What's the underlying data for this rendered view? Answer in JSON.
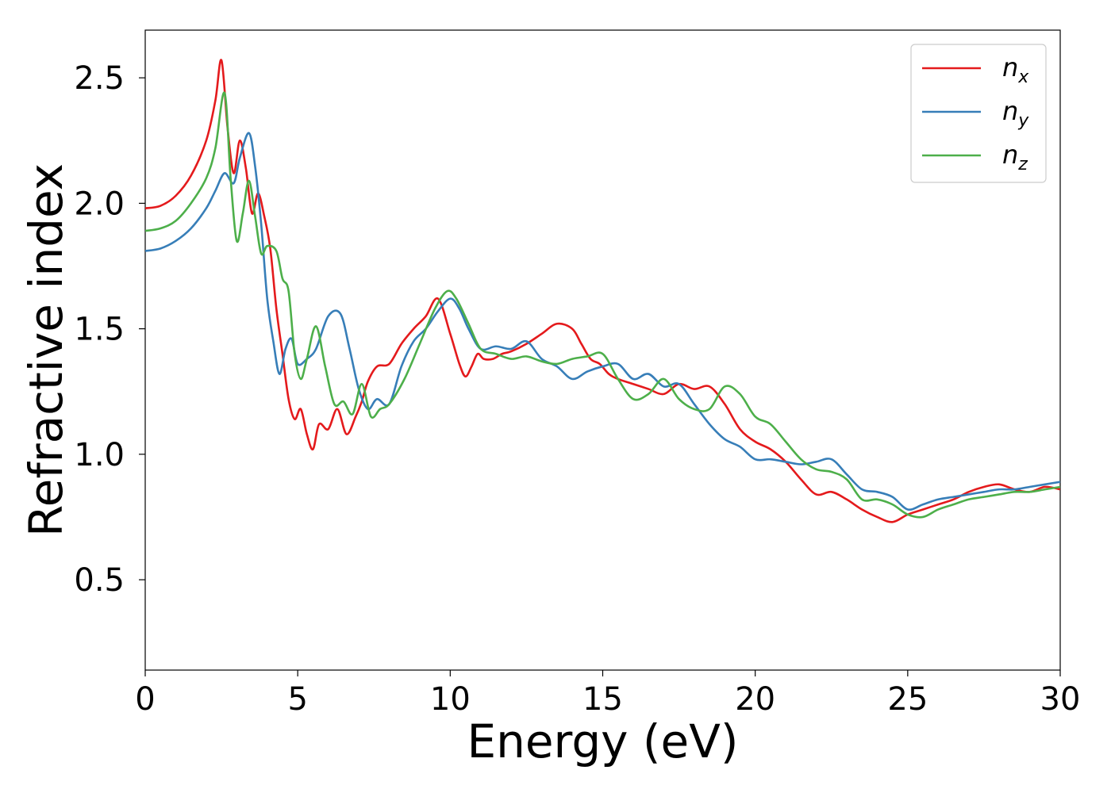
{
  "chart_data": {
    "type": "line",
    "title": "",
    "xlabel": "Energy (eV)",
    "ylabel": "Refractive index",
    "xlim": [
      0,
      30
    ],
    "ylim": [
      0.14,
      2.69
    ],
    "xticks": [
      0,
      5,
      10,
      15,
      20,
      25,
      30
    ],
    "xtick_labels": [
      "0",
      "5",
      "10",
      "15",
      "20",
      "25",
      "30"
    ],
    "yticks": [
      0.5,
      1.0,
      1.5,
      2.0,
      2.5
    ],
    "ytick_labels": [
      "0.5",
      "1.0",
      "1.5",
      "2.0",
      "2.5"
    ],
    "grid": false,
    "legend_position": "top-right",
    "series": [
      {
        "name": "n",
        "subscript": "x",
        "color": "#e41a1c",
        "x": [
          0,
          0.5,
          1.0,
          1.5,
          2.0,
          2.3,
          2.5,
          2.7,
          2.9,
          3.1,
          3.3,
          3.5,
          3.7,
          3.9,
          4.1,
          4.3,
          4.5,
          4.7,
          4.9,
          5.1,
          5.3,
          5.5,
          5.7,
          6.0,
          6.3,
          6.6,
          6.9,
          7.1,
          7.3,
          7.6,
          8.0,
          8.4,
          8.8,
          9.2,
          9.6,
          10.0,
          10.3,
          10.5,
          10.7,
          10.9,
          11.1,
          11.4,
          11.7,
          12.0,
          12.5,
          13.0,
          13.5,
          14.0,
          14.3,
          14.6,
          14.9,
          15.2,
          15.5,
          16.0,
          16.5,
          17.0,
          17.5,
          18.0,
          18.5,
          19.0,
          19.5,
          20.0,
          20.5,
          21.0,
          21.5,
          22.0,
          22.5,
          23.0,
          23.5,
          24.0,
          24.5,
          25.0,
          25.5,
          26.0,
          26.5,
          27.0,
          27.5,
          28.0,
          28.5,
          29.0,
          29.5,
          30.0
        ],
        "values": [
          1.98,
          1.99,
          2.03,
          2.11,
          2.25,
          2.41,
          2.57,
          2.3,
          2.12,
          2.25,
          2.14,
          1.96,
          2.04,
          1.95,
          1.82,
          1.58,
          1.4,
          1.22,
          1.14,
          1.18,
          1.08,
          1.02,
          1.12,
          1.1,
          1.18,
          1.08,
          1.15,
          1.21,
          1.29,
          1.35,
          1.36,
          1.44,
          1.5,
          1.55,
          1.62,
          1.48,
          1.36,
          1.31,
          1.35,
          1.4,
          1.38,
          1.38,
          1.4,
          1.41,
          1.44,
          1.48,
          1.52,
          1.5,
          1.44,
          1.38,
          1.36,
          1.32,
          1.3,
          1.28,
          1.26,
          1.24,
          1.28,
          1.26,
          1.27,
          1.2,
          1.1,
          1.05,
          1.02,
          0.97,
          0.9,
          0.84,
          0.85,
          0.82,
          0.78,
          0.75,
          0.73,
          0.76,
          0.78,
          0.8,
          0.82,
          0.85,
          0.87,
          0.88,
          0.86,
          0.85,
          0.87,
          0.86
        ]
      },
      {
        "name": "n",
        "subscript": "y",
        "color": "#377eb8",
        "x": [
          0,
          0.5,
          1.0,
          1.5,
          2.0,
          2.3,
          2.6,
          2.9,
          3.1,
          3.4,
          3.6,
          3.8,
          4.0,
          4.2,
          4.4,
          4.6,
          4.8,
          5.0,
          5.3,
          5.6,
          6.0,
          6.4,
          6.7,
          7.0,
          7.3,
          7.6,
          8.0,
          8.4,
          8.8,
          9.2,
          9.6,
          10.0,
          10.3,
          10.6,
          11.0,
          11.5,
          12.0,
          12.5,
          13.0,
          13.5,
          14.0,
          14.5,
          15.0,
          15.5,
          16.0,
          16.5,
          17.0,
          17.5,
          18.0,
          18.5,
          19.0,
          19.5,
          20.0,
          20.5,
          21.0,
          21.5,
          22.0,
          22.5,
          23.0,
          23.5,
          24.0,
          24.5,
          25.0,
          25.5,
          26.0,
          26.5,
          27.0,
          27.5,
          28.0,
          28.5,
          29.0,
          29.5,
          30.0
        ],
        "values": [
          1.81,
          1.82,
          1.85,
          1.9,
          1.98,
          2.05,
          2.12,
          2.08,
          2.18,
          2.28,
          2.15,
          1.92,
          1.62,
          1.45,
          1.32,
          1.42,
          1.46,
          1.36,
          1.38,
          1.42,
          1.55,
          1.56,
          1.42,
          1.26,
          1.18,
          1.22,
          1.2,
          1.35,
          1.45,
          1.5,
          1.57,
          1.62,
          1.58,
          1.5,
          1.42,
          1.43,
          1.42,
          1.45,
          1.38,
          1.35,
          1.3,
          1.33,
          1.35,
          1.36,
          1.3,
          1.32,
          1.27,
          1.28,
          1.2,
          1.12,
          1.06,
          1.03,
          0.98,
          0.98,
          0.97,
          0.96,
          0.97,
          0.98,
          0.92,
          0.86,
          0.85,
          0.83,
          0.78,
          0.8,
          0.82,
          0.83,
          0.84,
          0.85,
          0.86,
          0.86,
          0.87,
          0.88,
          0.89
        ]
      },
      {
        "name": "n",
        "subscript": "z",
        "color": "#4daf4a",
        "x": [
          0,
          0.5,
          1.0,
          1.5,
          2.0,
          2.3,
          2.6,
          2.8,
          3.0,
          3.2,
          3.4,
          3.6,
          3.8,
          4.0,
          4.3,
          4.5,
          4.7,
          4.9,
          5.1,
          5.3,
          5.6,
          5.9,
          6.2,
          6.5,
          6.8,
          7.1,
          7.4,
          7.7,
          8.0,
          8.5,
          9.0,
          9.5,
          9.9,
          10.2,
          10.6,
          11.0,
          11.5,
          12.0,
          12.5,
          13.0,
          13.5,
          14.0,
          14.5,
          15.0,
          15.5,
          16.0,
          16.5,
          17.0,
          17.5,
          18.0,
          18.5,
          19.0,
          19.5,
          20.0,
          20.5,
          21.0,
          21.5,
          22.0,
          22.5,
          23.0,
          23.5,
          24.0,
          24.5,
          25.0,
          25.5,
          26.0,
          26.5,
          27.0,
          27.5,
          28.0,
          28.5,
          29.0,
          29.5,
          30.0
        ],
        "values": [
          1.89,
          1.9,
          1.93,
          2.0,
          2.1,
          2.22,
          2.44,
          2.1,
          1.85,
          1.96,
          2.09,
          1.95,
          1.8,
          1.83,
          1.81,
          1.7,
          1.65,
          1.4,
          1.3,
          1.38,
          1.51,
          1.35,
          1.2,
          1.21,
          1.16,
          1.28,
          1.15,
          1.18,
          1.2,
          1.3,
          1.44,
          1.58,
          1.65,
          1.62,
          1.52,
          1.42,
          1.4,
          1.38,
          1.39,
          1.37,
          1.36,
          1.38,
          1.39,
          1.4,
          1.3,
          1.22,
          1.24,
          1.3,
          1.22,
          1.18,
          1.18,
          1.27,
          1.24,
          1.15,
          1.12,
          1.05,
          0.98,
          0.94,
          0.93,
          0.9,
          0.82,
          0.82,
          0.8,
          0.76,
          0.75,
          0.78,
          0.8,
          0.82,
          0.83,
          0.84,
          0.85,
          0.85,
          0.86,
          0.87
        ]
      }
    ]
  }
}
